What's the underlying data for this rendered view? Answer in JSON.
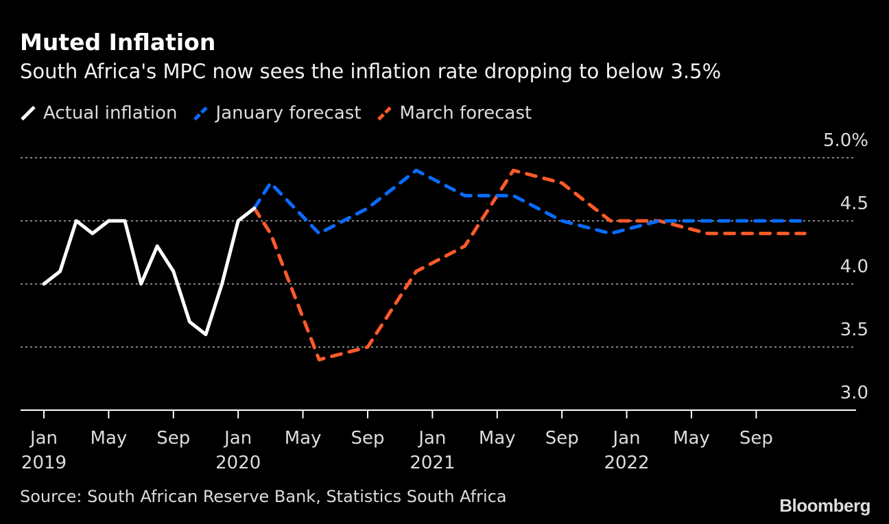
{
  "title": "Muted Inflation",
  "subtitle": "South Africa's MPC now sees the inflation rate dropping to below 3.5%",
  "source": "Source: South African Reserve Bank, Statistics South Africa",
  "logo": "Bloomberg",
  "chart_data": {
    "type": "line",
    "title": "Muted Inflation",
    "ylim": [
      3.0,
      5.0
    ],
    "y_ticks": [
      "3.0",
      "3.5",
      "4.0",
      "4.5",
      "5.0%"
    ],
    "y_tick_values": [
      3.0,
      3.5,
      4.0,
      4.5,
      5.0
    ],
    "x_ticks": [
      {
        "date": "2019-01",
        "label": "Jan",
        "year": "2019"
      },
      {
        "date": "2019-05",
        "label": "May",
        "year": ""
      },
      {
        "date": "2019-09",
        "label": "Sep",
        "year": ""
      },
      {
        "date": "2020-01",
        "label": "Jan",
        "year": "2020"
      },
      {
        "date": "2020-05",
        "label": "May",
        "year": ""
      },
      {
        "date": "2020-09",
        "label": "Sep",
        "year": ""
      },
      {
        "date": "2021-01",
        "label": "Jan",
        "year": "2021"
      },
      {
        "date": "2021-05",
        "label": "May",
        "year": ""
      },
      {
        "date": "2021-09",
        "label": "Sep",
        "year": ""
      },
      {
        "date": "2022-01",
        "label": "Jan",
        "year": "2022"
      },
      {
        "date": "2022-05",
        "label": "May",
        "year": ""
      },
      {
        "date": "2022-09",
        "label": "Sep",
        "year": ""
      }
    ],
    "grid": true,
    "legend": "top-left",
    "series": [
      {
        "name": "Actual inflation",
        "color": "#ffffff",
        "dashed": false,
        "points": [
          [
            "2019-01",
            4.0
          ],
          [
            "2019-02",
            4.1
          ],
          [
            "2019-03",
            4.5
          ],
          [
            "2019-04",
            4.4
          ],
          [
            "2019-05",
            4.5
          ],
          [
            "2019-06",
            4.5
          ],
          [
            "2019-07",
            4.0
          ],
          [
            "2019-08",
            4.3
          ],
          [
            "2019-09",
            4.1
          ],
          [
            "2019-10",
            3.7
          ],
          [
            "2019-11",
            3.6
          ],
          [
            "2019-12",
            4.0
          ],
          [
            "2020-01",
            4.5
          ],
          [
            "2020-02",
            4.6
          ]
        ]
      },
      {
        "name": "January forecast",
        "color": "#0a6cff",
        "dashed": true,
        "points": [
          [
            "2020-02",
            4.6
          ],
          [
            "2020-03",
            4.8
          ],
          [
            "2020-06",
            4.4
          ],
          [
            "2020-09",
            4.6
          ],
          [
            "2020-12",
            4.9
          ],
          [
            "2021-03",
            4.7
          ],
          [
            "2021-06",
            4.7
          ],
          [
            "2021-09",
            4.5
          ],
          [
            "2021-12",
            4.4
          ],
          [
            "2022-03",
            4.5
          ],
          [
            "2022-06",
            4.5
          ],
          [
            "2022-09",
            4.5
          ],
          [
            "2022-12",
            4.5
          ]
        ]
      },
      {
        "name": "March forecast",
        "color": "#ff5a2a",
        "dashed": true,
        "points": [
          [
            "2020-02",
            4.6
          ],
          [
            "2020-03",
            4.4
          ],
          [
            "2020-06",
            3.4
          ],
          [
            "2020-09",
            3.5
          ],
          [
            "2020-12",
            4.1
          ],
          [
            "2021-03",
            4.3
          ],
          [
            "2021-06",
            4.9
          ],
          [
            "2021-09",
            4.8
          ],
          [
            "2021-12",
            4.5
          ],
          [
            "2022-03",
            4.5
          ],
          [
            "2022-06",
            4.4
          ],
          [
            "2022-09",
            4.4
          ],
          [
            "2022-12",
            4.4
          ]
        ]
      }
    ]
  }
}
